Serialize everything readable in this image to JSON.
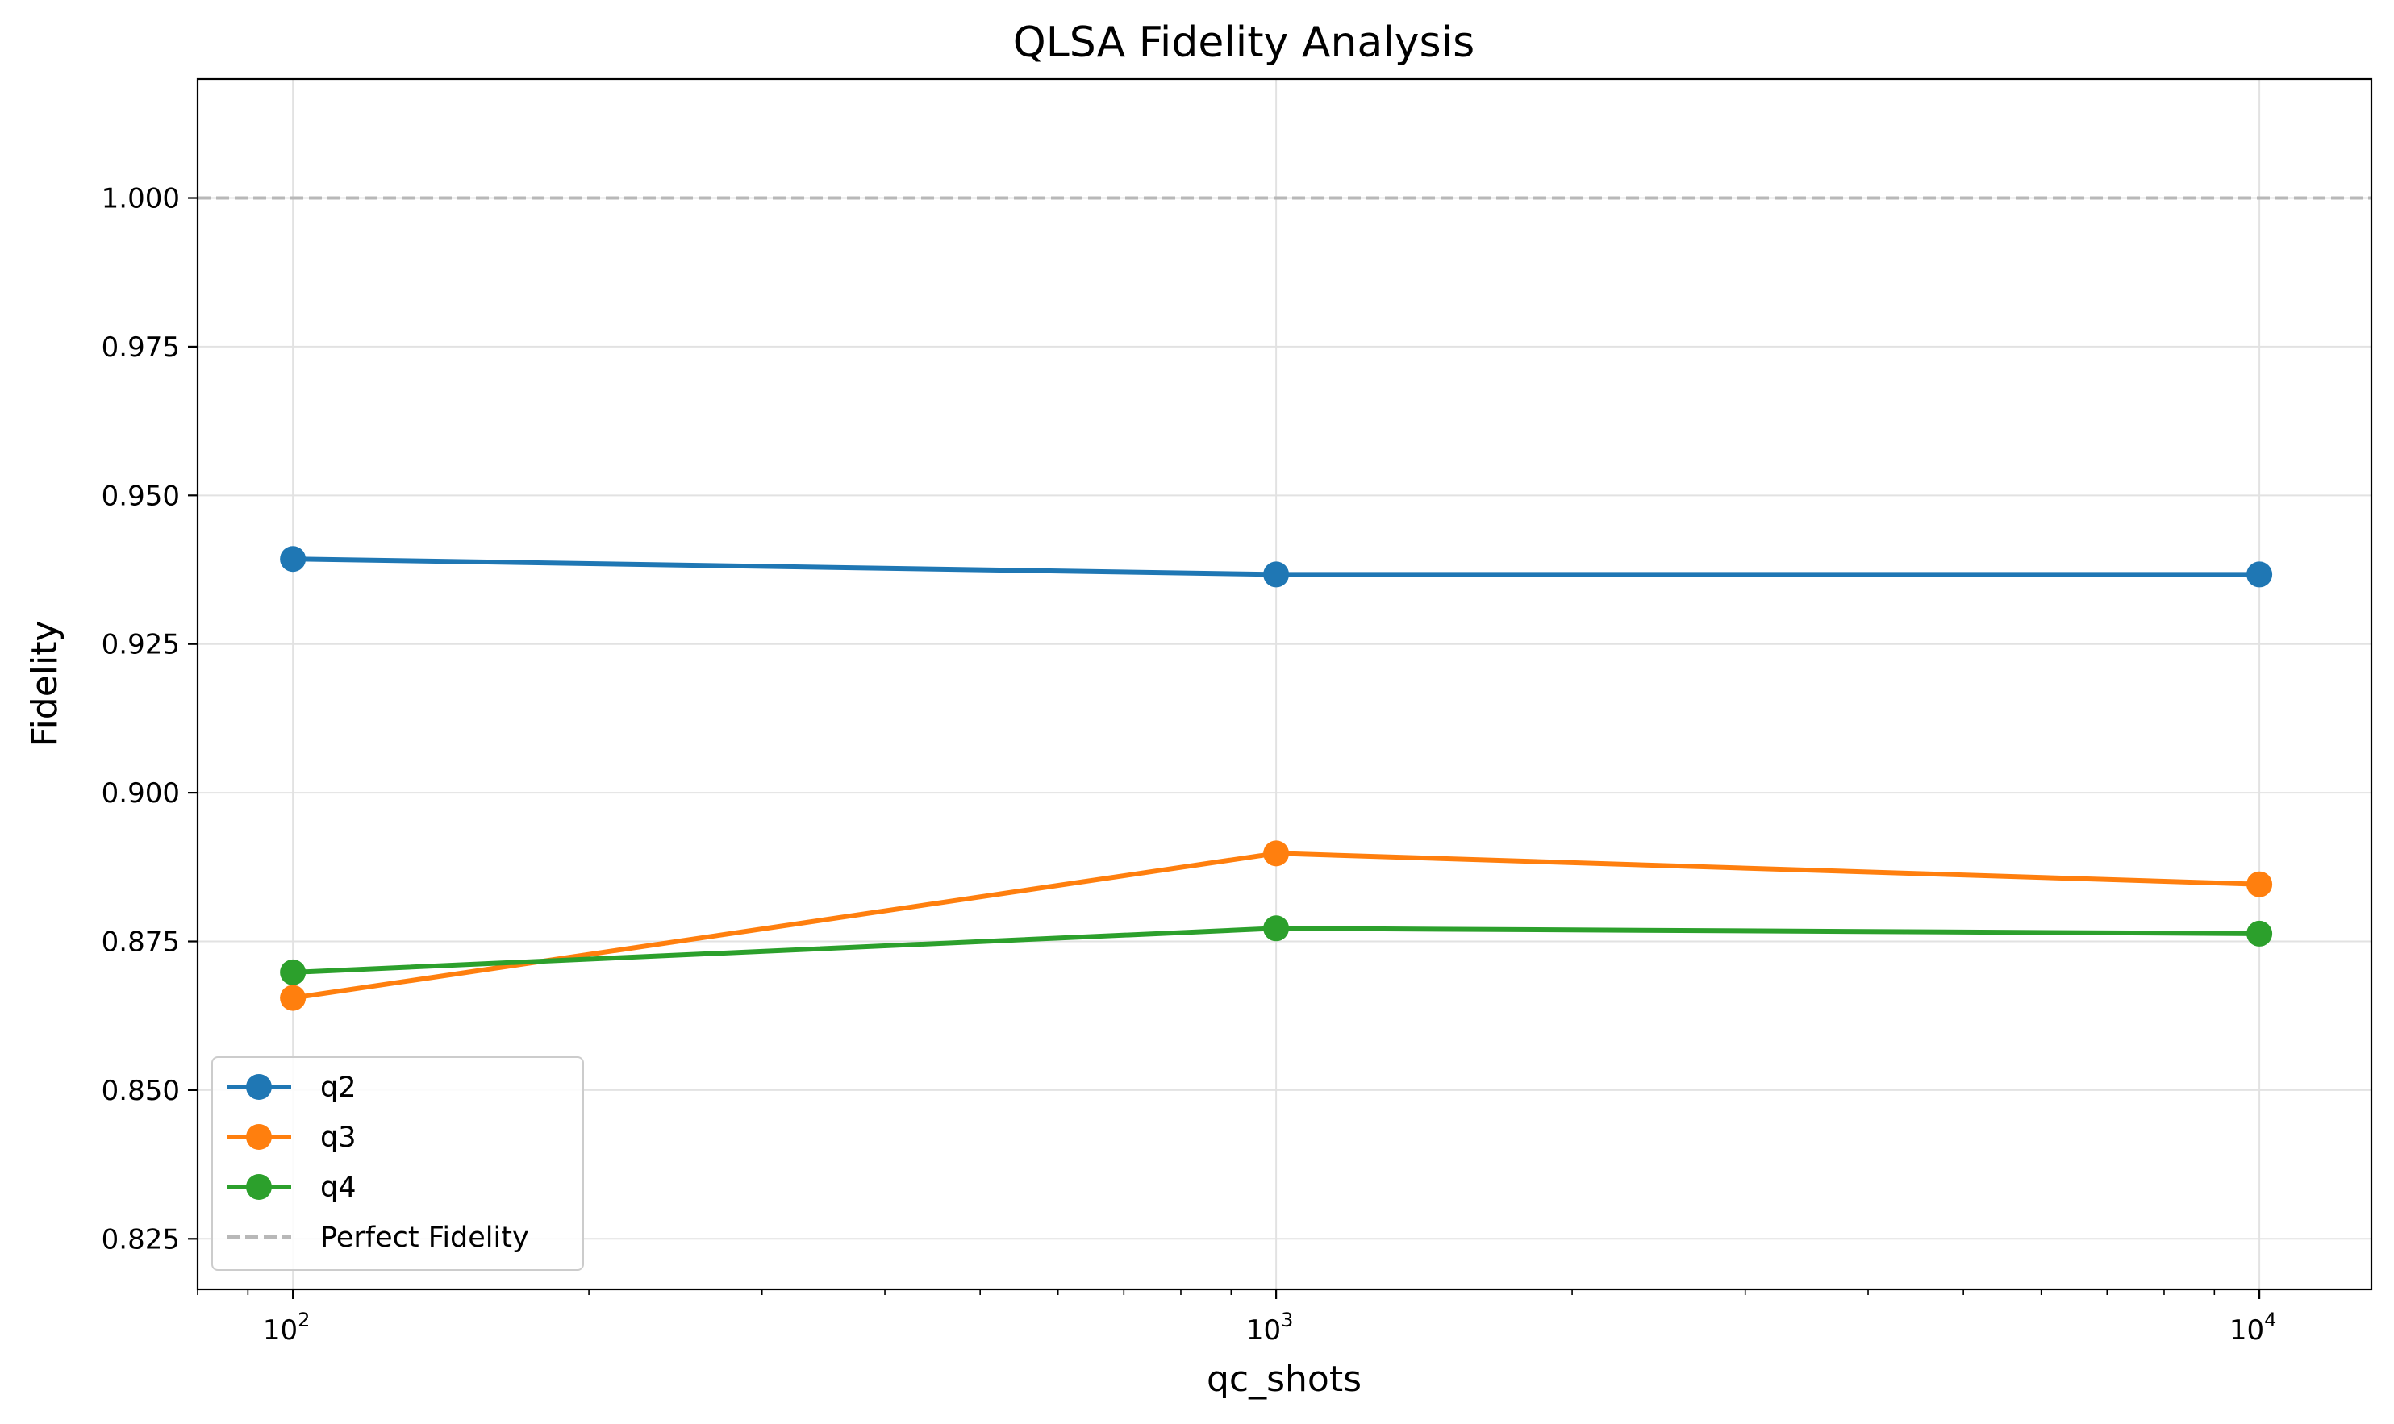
{
  "chart_data": {
    "type": "line",
    "title": "QLSA Fidelity Analysis",
    "xlabel": "qc_shots",
    "ylabel": "Fidelity",
    "xscale": "log",
    "x": [
      100,
      1000,
      10000
    ],
    "xlim": [
      80,
      13000
    ],
    "ylim": [
      0.8165,
      1.02
    ],
    "yticks": [
      "0.825",
      "0.850",
      "0.875",
      "0.900",
      "0.925",
      "0.950",
      "0.975",
      "1.000"
    ],
    "xticks": [
      {
        "value": 100,
        "base": "10",
        "exp": "2"
      },
      {
        "value": 1000,
        "base": "10",
        "exp": "3"
      },
      {
        "value": 10000,
        "base": "10",
        "exp": "4"
      }
    ],
    "grid": true,
    "legend_position": "lower-left",
    "series": [
      {
        "name": "q2",
        "color": "#1f77b4",
        "values": [
          0.9393,
          0.9367,
          0.9367
        ]
      },
      {
        "name": "q3",
        "color": "#ff7f0e",
        "values": [
          0.8655,
          0.8898,
          0.8846
        ]
      },
      {
        "name": "q4",
        "color": "#2ca02c",
        "values": [
          0.8698,
          0.8772,
          0.8763
        ]
      }
    ],
    "reference_line": {
      "name": "Perfect Fidelity",
      "value": 1.0,
      "color": "#b8b8b8",
      "style": "dashed"
    }
  }
}
